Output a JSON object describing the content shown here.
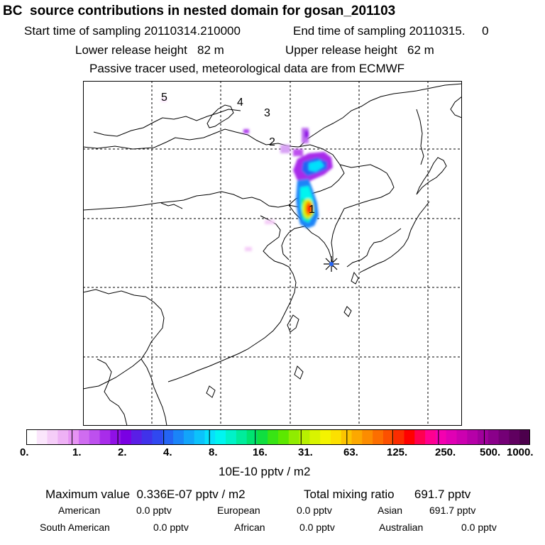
{
  "header": {
    "title": "BC  source contributions in nested domain for gosan_201103",
    "start_sampling": "Start time of sampling 20110314.210000",
    "end_sampling": "End time of sampling 20110315.     0",
    "lower_release": "Lower release height   82 m",
    "upper_release": "Upper release height   62 m",
    "tracer_note": "Passive tracer used, meteorological data are from ECMWF"
  },
  "map": {
    "labels": [
      "5",
      "4",
      "3",
      "2",
      "1"
    ],
    "receptor_marker": "receptor-star-icon"
  },
  "colorbar": {
    "ticks": [
      "0.",
      "1.",
      "2.",
      "4.",
      "8.",
      "16.",
      "31.",
      "63.",
      "125.",
      "250.",
      "500.",
      "1000."
    ],
    "colors": [
      "#ffffff",
      "#fbe6fc",
      "#f5cdf8",
      "#eeb1f5",
      "#e693f3",
      "#cf6cf0",
      "#bd50ee",
      "#a82cea",
      "#9010e6",
      "#7a00e3",
      "#5a1ee6",
      "#4032ea",
      "#3048f0",
      "#2464f4",
      "#1a84f8",
      "#12a4fa",
      "#0cc2fb",
      "#06e0fc",
      "#00f5f0",
      "#00f2c8",
      "#00ec9c",
      "#00e470",
      "#10de40",
      "#38e414",
      "#5ce800",
      "#90ec00",
      "#b8f000",
      "#d8f400",
      "#f4f400",
      "#fce000",
      "#fcc400",
      "#fca800",
      "#fc8c00",
      "#fc6e00",
      "#fc5000",
      "#fc2c00",
      "#ff0000",
      "#ff0050",
      "#ff0090",
      "#f400b0",
      "#e000b4",
      "#cc00b0",
      "#b600a8",
      "#a0009c",
      "#8a008a",
      "#740076",
      "#600060",
      "#4c004c"
    ],
    "unit": "10E-10 pptv / m2"
  },
  "summary": {
    "maximum": "Maximum value  0.336E-07 pptv / m2",
    "total": "Total mixing ratio      691.7 pptv",
    "american_label": "American",
    "american_value": "0.0 pptv",
    "european_label": "European",
    "european_value": "0.0 pptv",
    "asian_label": "Asian",
    "asian_value": "691.7 pptv",
    "south_american_label": "South American",
    "south_american_value": "0.0 pptv",
    "african_label": "African",
    "african_value": "0.0 pptv",
    "australian_label": "Australian",
    "australian_value": "0.0 pptv"
  }
}
